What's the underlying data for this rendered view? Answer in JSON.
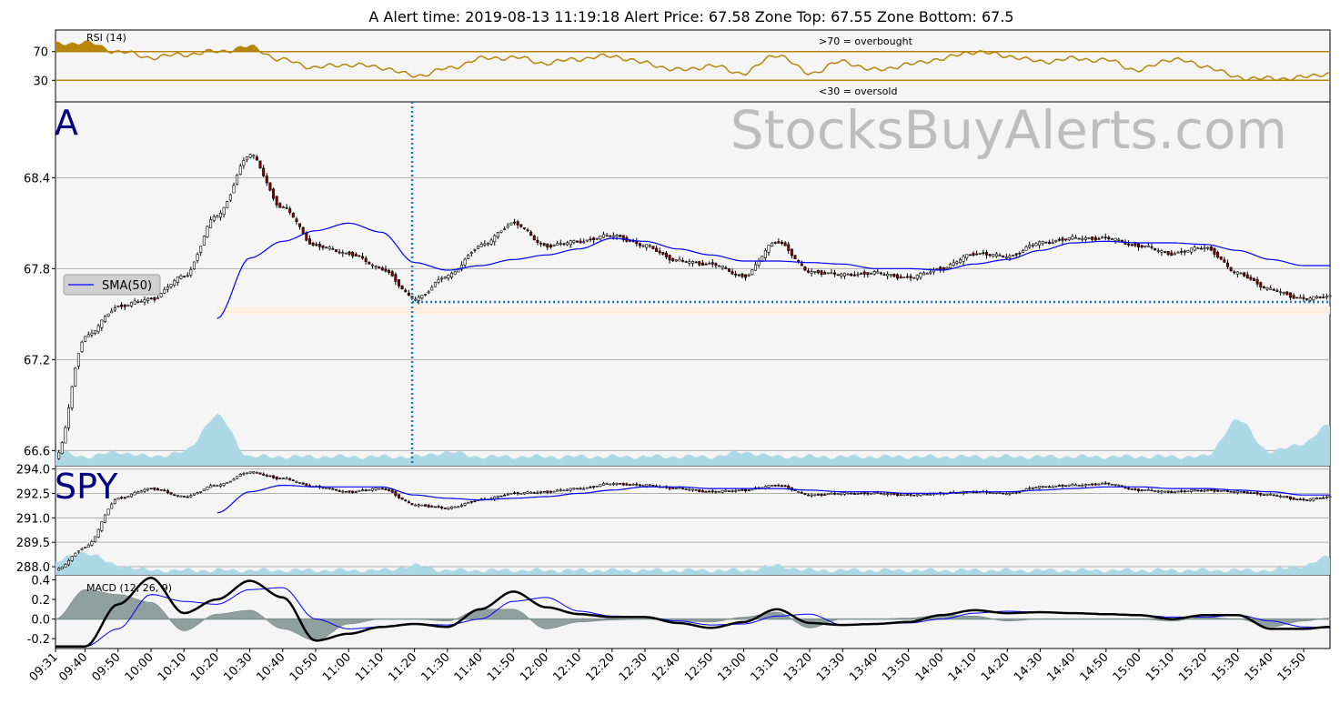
{
  "title": "A      Alert time: 2019-08-13 11:19:18         Alert Price: 67.58       Zone Top: 67.55  Zone Bottom: 67.5",
  "watermark": "StocksBuyAlerts.com",
  "colors": {
    "rsi_line": "#b8860b",
    "sma": "#0000ff",
    "volume": "#add8e6",
    "zone": "#fdf0e0",
    "alert_marker": "#1f77b4",
    "macd_hist": "#7f9290",
    "panel_bg": "#f5f5f5"
  },
  "chart_data": [
    {
      "type": "line",
      "panel": "rsi",
      "label": "RSI (14)",
      "yticks": [
        30,
        70
      ],
      "annotations": [
        ">70 = overbought",
        "<30 = oversold"
      ],
      "thresholds": [
        70,
        30
      ],
      "x": [
        "09:31",
        "09:40",
        "09:50",
        "10:00",
        "10:10",
        "10:20",
        "10:30",
        "10:40",
        "10:50",
        "11:00",
        "11:10",
        "11:20",
        "11:30",
        "11:40",
        "11:50",
        "12:00",
        "12:10",
        "12:20",
        "12:30",
        "12:40",
        "12:50",
        "13:00",
        "13:10",
        "13:20",
        "13:30",
        "13:40",
        "13:50",
        "14:00",
        "14:10",
        "14:20",
        "14:30",
        "14:40",
        "14:50",
        "15:00",
        "15:10",
        "15:20",
        "15:30",
        "15:40",
        "15:50",
        "15:58"
      ],
      "values": [
        80,
        82,
        70,
        62,
        66,
        70,
        76,
        58,
        48,
        52,
        48,
        36,
        46,
        60,
        62,
        54,
        60,
        64,
        54,
        44,
        50,
        40,
        66,
        40,
        56,
        44,
        52,
        60,
        70,
        64,
        56,
        60,
        58,
        44,
        60,
        50,
        34,
        32,
        34,
        40
      ]
    },
    {
      "type": "candlestick",
      "panel": "price",
      "symbol": "A",
      "legend": "SMA(50)",
      "legend_position": "middle-left",
      "yticks": [
        66.6,
        67.2,
        67.8,
        68.4
      ],
      "ylim": [
        66.5,
        68.9
      ],
      "zone": [
        67.5,
        67.55
      ],
      "alert_time": "11:19:18",
      "alert_price": 67.58,
      "x": [
        "09:31",
        "09:40",
        "09:50",
        "10:00",
        "10:10",
        "10:20",
        "10:30",
        "10:40",
        "10:50",
        "11:00",
        "11:10",
        "11:20",
        "11:30",
        "11:40",
        "11:50",
        "12:00",
        "12:10",
        "12:20",
        "12:30",
        "12:40",
        "12:50",
        "13:00",
        "13:10",
        "13:20",
        "13:30",
        "13:40",
        "13:50",
        "14:00",
        "14:10",
        "14:20",
        "14:30",
        "14:40",
        "14:50",
        "15:00",
        "15:10",
        "15:20",
        "15:30",
        "15:40",
        "15:50",
        "15:58"
      ],
      "close": [
        66.55,
        67.35,
        67.55,
        67.6,
        67.75,
        68.15,
        68.55,
        68.2,
        67.95,
        67.9,
        67.8,
        67.6,
        67.75,
        67.95,
        68.1,
        67.95,
        67.98,
        68.02,
        67.95,
        67.85,
        67.83,
        67.75,
        67.98,
        67.78,
        67.76,
        67.77,
        67.74,
        67.8,
        67.9,
        67.88,
        67.97,
        68.0,
        68.0,
        67.95,
        67.9,
        67.94,
        67.77,
        67.66,
        67.6,
        67.62
      ],
      "sma": [
        null,
        null,
        null,
        null,
        null,
        67.47,
        67.87,
        67.98,
        68.05,
        68.1,
        68.04,
        67.84,
        67.79,
        67.82,
        67.86,
        67.89,
        67.93,
        68.0,
        67.98,
        67.93,
        67.89,
        67.85,
        67.85,
        67.84,
        67.83,
        67.8,
        67.8,
        67.79,
        67.83,
        67.86,
        67.92,
        67.97,
        67.98,
        67.97,
        67.97,
        67.96,
        67.92,
        67.86,
        67.82,
        67.82
      ],
      "volume": [
        3,
        2,
        3,
        2,
        3,
        11,
        2,
        2,
        2,
        2,
        2,
        2,
        3,
        2,
        2,
        2,
        2,
        2,
        2,
        2,
        2,
        3,
        2,
        2,
        2,
        2,
        2,
        2,
        2,
        2,
        2,
        2,
        2,
        2,
        2,
        2,
        10,
        3,
        5,
        9
      ]
    },
    {
      "type": "candlestick",
      "panel": "spy",
      "symbol": "SPY",
      "yticks": [
        288.0,
        289.5,
        291.0,
        292.5,
        294.0
      ],
      "ylim": [
        287.5,
        294.2
      ],
      "x": [
        "09:31",
        "09:40",
        "09:50",
        "10:00",
        "10:10",
        "10:20",
        "10:30",
        "10:40",
        "10:50",
        "11:00",
        "11:10",
        "11:20",
        "11:30",
        "11:40",
        "11:50",
        "12:00",
        "12:10",
        "12:20",
        "12:30",
        "12:40",
        "12:50",
        "13:00",
        "13:10",
        "13:20",
        "13:30",
        "13:40",
        "13:50",
        "14:00",
        "14:10",
        "14:20",
        "14:30",
        "14:40",
        "14:50",
        "15:00",
        "15:10",
        "15:20",
        "15:30",
        "15:40",
        "15:50",
        "15:58"
      ],
      "close": [
        287.8,
        289.2,
        292.2,
        292.8,
        292.3,
        293.0,
        293.8,
        293.4,
        292.9,
        292.6,
        292.8,
        291.8,
        291.6,
        292.1,
        292.5,
        292.6,
        292.8,
        293.1,
        293.0,
        292.8,
        292.6,
        292.7,
        293.0,
        292.4,
        292.5,
        292.5,
        292.4,
        292.5,
        292.6,
        292.5,
        292.9,
        293.0,
        293.1,
        292.7,
        292.6,
        292.7,
        292.6,
        292.4,
        292.1,
        292.3
      ],
      "sma": [
        null,
        null,
        null,
        null,
        null,
        291.3,
        292.6,
        293.0,
        292.9,
        292.9,
        292.9,
        292.4,
        292.2,
        292.1,
        292.2,
        292.3,
        292.5,
        292.7,
        292.9,
        292.9,
        292.8,
        292.8,
        292.8,
        292.7,
        292.6,
        292.6,
        292.5,
        292.5,
        292.6,
        292.6,
        292.7,
        292.8,
        292.9,
        292.9,
        292.8,
        292.8,
        292.7,
        292.6,
        292.4,
        292.4
      ],
      "volume": [
        3,
        5,
        2,
        1,
        1,
        1,
        1,
        1,
        1,
        1,
        1,
        2,
        1,
        1,
        1,
        1,
        1,
        1,
        1,
        1,
        1,
        1,
        2,
        1,
        1,
        1,
        1,
        1,
        1,
        1,
        1,
        1,
        1,
        1,
        1,
        1,
        1,
        1,
        2,
        4
      ]
    },
    {
      "type": "line",
      "panel": "macd",
      "label": "MACD (12, 26, 9)",
      "yticks": [
        -0.2,
        0.0,
        0.2,
        0.4
      ],
      "ylim": [
        -0.3,
        0.45
      ],
      "x": [
        "09:31",
        "09:40",
        "09:50",
        "10:00",
        "10:10",
        "10:20",
        "10:30",
        "10:40",
        "10:50",
        "11:00",
        "11:10",
        "11:20",
        "11:30",
        "11:40",
        "11:50",
        "12:00",
        "12:10",
        "12:20",
        "12:30",
        "12:40",
        "12:50",
        "13:00",
        "13:10",
        "13:20",
        "13:30",
        "13:40",
        "13:50",
        "14:00",
        "14:10",
        "14:20",
        "14:30",
        "14:40",
        "14:50",
        "15:00",
        "15:10",
        "15:20",
        "15:30",
        "15:40",
        "15:50",
        "15:58"
      ],
      "macd": [
        -0.28,
        -0.28,
        0.15,
        0.42,
        0.06,
        0.2,
        0.39,
        0.22,
        -0.22,
        -0.15,
        -0.08,
        -0.05,
        -0.08,
        0.1,
        0.28,
        0.12,
        0.05,
        0.02,
        0.02,
        -0.04,
        -0.09,
        -0.03,
        0.1,
        -0.04,
        -0.06,
        -0.05,
        -0.03,
        0.04,
        0.09,
        0.06,
        0.07,
        0.06,
        0.05,
        0.04,
        0.0,
        0.04,
        0.04,
        -0.1,
        -0.1,
        -0.08
      ],
      "signal": [
        -0.28,
        -0.28,
        -0.1,
        0.25,
        0.18,
        0.15,
        0.3,
        0.32,
        0.0,
        -0.1,
        -0.08,
        -0.05,
        -0.06,
        0.0,
        0.18,
        0.22,
        0.08,
        0.03,
        0.02,
        -0.02,
        -0.06,
        -0.05,
        0.03,
        0.05,
        -0.06,
        -0.05,
        -0.04,
        0.0,
        0.06,
        0.08,
        0.07,
        0.06,
        0.05,
        0.04,
        0.02,
        0.02,
        0.04,
        -0.02,
        -0.08,
        -0.09
      ],
      "histogram": [
        0,
        0.3,
        0.25,
        0.17,
        -0.12,
        0.05,
        0.09,
        -0.1,
        -0.22,
        -0.05,
        0,
        0,
        -0.02,
        0.1,
        0.1,
        -0.1,
        -0.03,
        -0.01,
        0,
        -0.02,
        -0.03,
        0.02,
        0.07,
        -0.09,
        0,
        0,
        0.01,
        0.04,
        0.03,
        -0.02,
        0,
        0,
        0,
        0,
        -0.02,
        0.02,
        0,
        -0.08,
        -0.02,
        0.01
      ]
    }
  ],
  "x_axis": {
    "labels": [
      "09:31",
      "09:40",
      "09:50",
      "10:00",
      "10:10",
      "10:20",
      "10:30",
      "10:40",
      "10:50",
      "11:00",
      "11:10",
      "11:20",
      "11:30",
      "11:40",
      "11:50",
      "12:00",
      "12:10",
      "12:20",
      "12:30",
      "12:40",
      "12:50",
      "13:00",
      "13:10",
      "13:20",
      "13:30",
      "13:40",
      "13:50",
      "14:00",
      "14:10",
      "14:20",
      "14:30",
      "14:40",
      "14:50",
      "15:00",
      "15:10",
      "15:20",
      "15:30",
      "15:40",
      "15:50"
    ]
  }
}
